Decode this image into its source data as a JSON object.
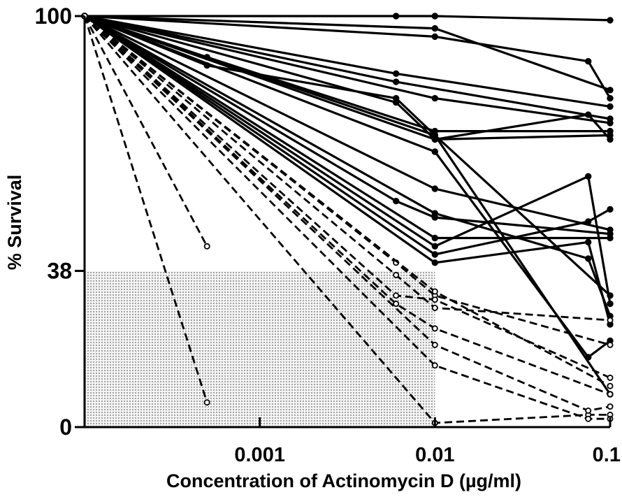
{
  "chart_data": {
    "type": "line",
    "title": "",
    "xlabel": "Concentration of Actinomycin D (µg/ml)",
    "ylabel": "% Survival",
    "x_scale": "log",
    "xlim": [
      0.0001,
      0.1
    ],
    "ylim": [
      0,
      100
    ],
    "x_tick_labels": [
      "0.001",
      "0.01",
      "0.1"
    ],
    "y_tick_labels": [
      "0",
      "38",
      "100"
    ],
    "shaded_region": {
      "x": [
        0.0001,
        0.01
      ],
      "y": [
        0,
        38
      ]
    },
    "grid": false,
    "solid_series": [
      {
        "x": [
          0.0001,
          0.006,
          0.01,
          0.1
        ],
        "y": [
          100,
          100,
          100,
          99
        ]
      },
      {
        "x": [
          0.0001,
          0.01,
          0.1
        ],
        "y": [
          100,
          97,
          82
        ]
      },
      {
        "x": [
          0.0001,
          0.01,
          0.075,
          0.1
        ],
        "y": [
          100,
          95,
          89,
          80
        ]
      },
      {
        "x": [
          0.0001,
          0.006,
          0.1
        ],
        "y": [
          100,
          86,
          78
        ]
      },
      {
        "x": [
          0.0001,
          0.01,
          0.1
        ],
        "y": [
          100,
          80,
          74
        ]
      },
      {
        "x": [
          0.0001,
          0.006,
          0.1
        ],
        "y": [
          100,
          84,
          75
        ]
      },
      {
        "x": [
          0.0001,
          0.0005,
          0.01,
          0.1
        ],
        "y": [
          100,
          90,
          72,
          72
        ]
      },
      {
        "x": [
          0.0001,
          0.0005,
          0.006,
          0.01,
          0.1
        ],
        "y": [
          100,
          88,
          80,
          71,
          32
        ]
      },
      {
        "x": [
          0.0001,
          0.006,
          0.01,
          0.1
        ],
        "y": [
          100,
          79,
          70,
          71
        ]
      },
      {
        "x": [
          0.0001,
          0.01,
          0.075,
          0.1
        ],
        "y": [
          100,
          70,
          76,
          70
        ]
      },
      {
        "x": [
          0.0001,
          0.01,
          0.1
        ],
        "y": [
          100,
          58,
          48
        ]
      },
      {
        "x": [
          0.0001,
          0.006,
          0.01,
          0.1
        ],
        "y": [
          100,
          55,
          51,
          47
        ]
      },
      {
        "x": [
          0.0001,
          0.01,
          0.1
        ],
        "y": [
          100,
          46,
          46
        ]
      },
      {
        "x": [
          0.0001,
          0.01,
          0.075,
          0.1
        ],
        "y": [
          100,
          42,
          50,
          53
        ]
      },
      {
        "x": [
          0.0001,
          0.01,
          0.075,
          0.1
        ],
        "y": [
          100,
          44,
          61,
          30
        ]
      },
      {
        "x": [
          0.0001,
          0.01,
          0.075,
          0.1
        ],
        "y": [
          100,
          40,
          45,
          25
        ]
      },
      {
        "x": [
          0.0001,
          0.01,
          0.075,
          0.1
        ],
        "y": [
          100,
          52,
          41,
          27
        ]
      },
      {
        "x": [
          0.0001,
          0.01,
          0.075,
          0.1
        ],
        "y": [
          100,
          67,
          17,
          21
        ]
      },
      {
        "x": [
          0.0001,
          0.01,
          0.1
        ],
        "y": [
          100,
          71,
          8
        ]
      }
    ],
    "dashed_series": [
      {
        "x": [
          0.0001,
          0.0005
        ],
        "y": [
          100,
          44
        ]
      },
      {
        "x": [
          0.0001,
          0.0005
        ],
        "y": [
          100,
          6
        ]
      },
      {
        "x": [
          0.0001,
          0.01,
          0.075,
          0.1
        ],
        "y": [
          100,
          1,
          3,
          3
        ]
      },
      {
        "x": [
          0.0001,
          0.006,
          0.01,
          0.1
        ],
        "y": [
          100,
          40,
          32,
          20
        ]
      },
      {
        "x": [
          0.0001,
          0.006,
          0.01,
          0.1
        ],
        "y": [
          100,
          37,
          29,
          26
        ]
      },
      {
        "x": [
          0.0001,
          0.006,
          0.01,
          0.1
        ],
        "y": [
          100,
          32,
          31,
          12
        ]
      },
      {
        "x": [
          0.0001,
          0.006,
          0.01,
          0.1
        ],
        "y": [
          100,
          30,
          24,
          8
        ]
      },
      {
        "x": [
          0.0001,
          0.01,
          0.075,
          0.1
        ],
        "y": [
          100,
          20,
          4,
          5
        ]
      },
      {
        "x": [
          0.0001,
          0.01,
          0.075,
          0.1
        ],
        "y": [
          100,
          15,
          2,
          2
        ]
      },
      {
        "x": [
          0.0001,
          0.01,
          0.1
        ],
        "y": [
          100,
          33,
          10
        ]
      }
    ]
  }
}
